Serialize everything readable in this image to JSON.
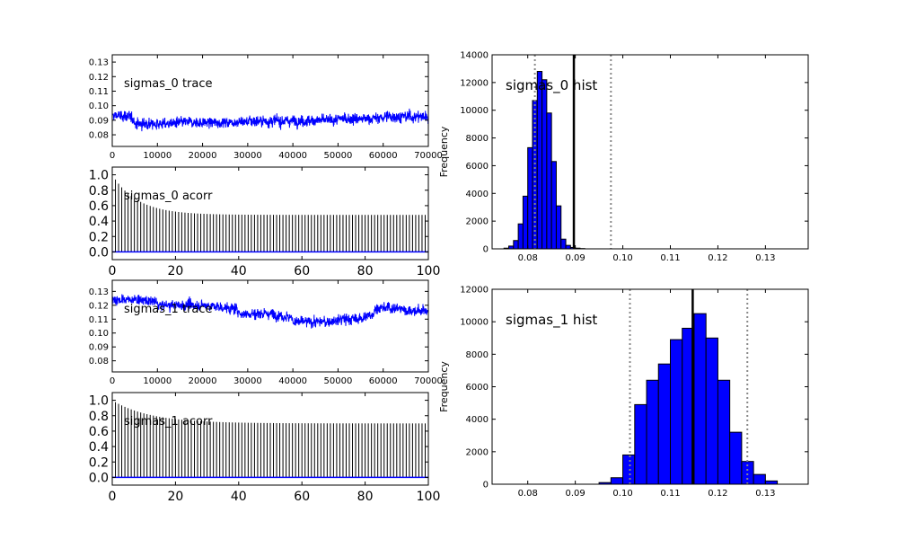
{
  "chart_data": [
    {
      "type": "line",
      "title": "sigmas_0 trace",
      "xlim": [
        0,
        70000
      ],
      "ylim": [
        0.072,
        0.135
      ],
      "x_ticks": [
        "0",
        "10000",
        "20000",
        "30000",
        "40000",
        "50000",
        "60000",
        "70000"
      ],
      "y_ticks": [
        "0.08",
        "0.09",
        "0.10",
        "0.11",
        "0.12",
        "0.13"
      ],
      "series": [
        {
          "color": "#0000ff",
          "segments": [
            {
              "x0": 0,
              "x1": 5000,
              "mean": 0.093,
              "spread": 0.0085
            },
            {
              "x0": 5000,
              "x1": 15000,
              "mean": 0.0875,
              "spread": 0.0085
            },
            {
              "x0": 15000,
              "x1": 30000,
              "mean": 0.0885,
              "spread": 0.008
            },
            {
              "x0": 30000,
              "x1": 50000,
              "mean": 0.0895,
              "spread": 0.0085
            },
            {
              "x0": 50000,
              "x1": 60000,
              "mean": 0.091,
              "spread": 0.0085
            },
            {
              "x0": 60000,
              "x1": 70000,
              "mean": 0.0925,
              "spread": 0.009
            }
          ]
        }
      ]
    },
    {
      "type": "bar",
      "title": "sigmas_0 acorr",
      "xlim": [
        0,
        100
      ],
      "ylim": [
        -0.1,
        1.1
      ],
      "x_ticks": [
        "0",
        "20",
        "40",
        "60",
        "80",
        "100"
      ],
      "y_ticks": [
        "0.0",
        "0.2",
        "0.4",
        "0.6",
        "0.8",
        "1.0"
      ],
      "lag0": 1.0,
      "asymptote": 0.48,
      "decay_lags": 8
    },
    {
      "type": "line",
      "title": "sigmas_1 trace",
      "xlim": [
        0,
        70000
      ],
      "ylim": [
        0.072,
        0.138
      ],
      "x_ticks": [
        "0",
        "10000",
        "20000",
        "30000",
        "40000",
        "50000",
        "60000",
        "70000"
      ],
      "y_ticks": [
        "0.08",
        "0.09",
        "0.10",
        "0.11",
        "0.12",
        "0.13"
      ],
      "series": [
        {
          "color": "#0000ff",
          "segments": [
            {
              "x0": 0,
              "x1": 10000,
              "mean": 0.124,
              "spread": 0.008
            },
            {
              "x0": 10000,
              "x1": 28000,
              "mean": 0.12,
              "spread": 0.0085
            },
            {
              "x0": 28000,
              "x1": 40000,
              "mean": 0.114,
              "spread": 0.009
            },
            {
              "x0": 40000,
              "x1": 50000,
              "mean": 0.108,
              "spread": 0.0085
            },
            {
              "x0": 50000,
              "x1": 58000,
              "mean": 0.11,
              "spread": 0.0085
            },
            {
              "x0": 58000,
              "x1": 65000,
              "mean": 0.118,
              "spread": 0.0085
            },
            {
              "x0": 65000,
              "x1": 70000,
              "mean": 0.116,
              "spread": 0.008
            }
          ]
        }
      ]
    },
    {
      "type": "bar",
      "title": "sigmas_1 acorr",
      "xlim": [
        0,
        100
      ],
      "ylim": [
        -0.1,
        1.1
      ],
      "x_ticks": [
        "0",
        "20",
        "40",
        "60",
        "80",
        "100"
      ],
      "y_ticks": [
        "0.0",
        "0.2",
        "0.4",
        "0.6",
        "0.8",
        "1.0"
      ],
      "lag0": 1.0,
      "asymptote": 0.7,
      "decay_lags": 12
    },
    {
      "type": "bar",
      "title": "sigmas_0 hist",
      "ylabel": "Frequency",
      "xlim": [
        0.0725,
        0.139
      ],
      "ylim": [
        0,
        14000
      ],
      "x_ticks": [
        "0.08",
        "0.09",
        "0.10",
        "0.11",
        "0.12",
        "0.13"
      ],
      "y_ticks": [
        "0",
        "2000",
        "4000",
        "6000",
        "8000",
        "10000",
        "12000",
        "14000"
      ],
      "bin_width": 0.001,
      "bin_start": 0.075,
      "values": [
        50,
        200,
        600,
        1800,
        3800,
        7300,
        10700,
        12800,
        12200,
        9800,
        6300,
        3100,
        700,
        250,
        100,
        50,
        20
      ],
      "mean": 0.0897,
      "interval": [
        0.0815,
        0.0975
      ]
    },
    {
      "type": "bar",
      "title": "sigmas_1 hist",
      "ylabel": "Frequency",
      "xlim": [
        0.0725,
        0.139
      ],
      "ylim": [
        0,
        12000
      ],
      "x_ticks": [
        "0.08",
        "0.09",
        "0.10",
        "0.11",
        "0.12",
        "0.13"
      ],
      "y_ticks": [
        "0",
        "2000",
        "4000",
        "6000",
        "8000",
        "10000",
        "12000"
      ],
      "bin_width": 0.0025,
      "bin_start": 0.095,
      "values": [
        100,
        400,
        1800,
        4900,
        6400,
        7400,
        8900,
        9600,
        10500,
        9000,
        6400,
        3200,
        1400,
        600,
        200
      ],
      "mean": 0.1147,
      "interval": [
        0.1015,
        0.1262
      ]
    }
  ]
}
